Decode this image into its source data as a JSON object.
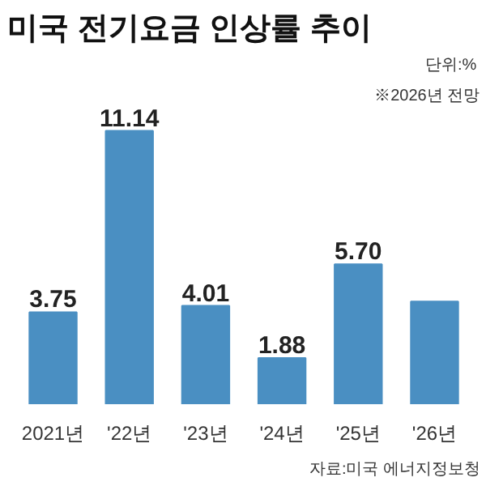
{
  "chart_data": {
    "type": "bar",
    "title": "미국 전기요금 인상률 추이",
    "annotations": [
      "단위:%",
      "※2026년 전망",
      "자료:미국 에너지정보청"
    ],
    "categories": [
      "2021년",
      "'22년",
      "'23년",
      "'24년",
      "'25년",
      "'26년"
    ],
    "values": [
      3.75,
      11.14,
      4.01,
      1.88,
      5.7,
      4.18
    ],
    "value_labels": [
      "3.75",
      "11.14",
      "4.01",
      "1.88",
      "5.70",
      null
    ],
    "color": "#4a8fc2",
    "grid": false
  }
}
